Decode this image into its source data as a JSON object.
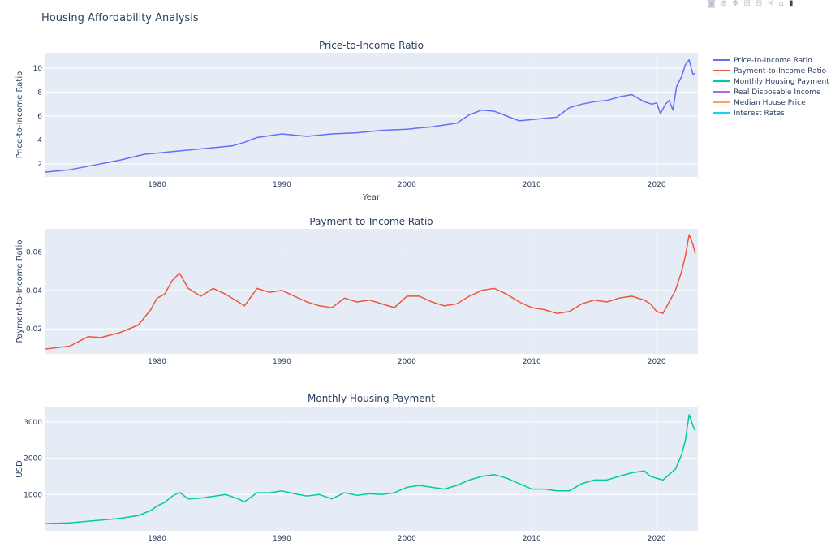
{
  "page": {
    "title": "Housing Affordability Analysis"
  },
  "modebar": {
    "icons": [
      "camera-icon",
      "zoom-icon",
      "pan-icon",
      "zoom-in-icon",
      "zoom-out-icon",
      "autoscale-icon",
      "reset-axes-icon",
      "plotly-logo-icon"
    ],
    "glyphs": [
      "◙",
      "⊕",
      "✥",
      "⊞",
      "⊟",
      "✕",
      "⌂",
      "▮"
    ]
  },
  "legend": {
    "placement": "top-right",
    "entries": [
      {
        "name": "Price-to-Income Ratio",
        "color": "#636efa"
      },
      {
        "name": "Payment-to-Income Ratio",
        "color": "#ef553b"
      },
      {
        "name": "Monthly Housing Payment",
        "color": "#00cc96"
      },
      {
        "name": "Real Disposable Income",
        "color": "#ab63fa"
      },
      {
        "name": "Median House Price",
        "color": "#ffa15a"
      },
      {
        "name": "Interest Rates",
        "color": "#19d3f3"
      }
    ]
  },
  "chart_data": [
    {
      "type": "line",
      "title": "Price-to-Income Ratio",
      "xlabel": "Year",
      "ylabel": "Price-to-Income Ratio",
      "xlim": [
        1971,
        2023.3
      ],
      "ylim": [
        0.9,
        11.3
      ],
      "xticks": [
        1980,
        1990,
        2000,
        2010,
        2020
      ],
      "yticks": [
        2,
        4,
        6,
        8,
        10
      ],
      "tick_labels_y": [
        "2",
        "4",
        "6",
        "8",
        "10"
      ],
      "grid": true,
      "series": [
        {
          "name": "Price-to-Income Ratio",
          "color": "#636efa",
          "x": [
            1971,
            1973,
            1975,
            1977,
            1979,
            1980,
            1982,
            1984,
            1986,
            1987,
            1988,
            1990,
            1992,
            1994,
            1996,
            1998,
            2000,
            2002,
            2004,
            2005,
            2006,
            2007,
            2008,
            2009,
            2010,
            2011,
            2012,
            2013,
            2014,
            2015,
            2016,
            2017,
            2018,
            2019,
            2019.6,
            2020,
            2020.3,
            2020.7,
            2021,
            2021.3,
            2021.6,
            2022,
            2022.3,
            2022.6,
            2022.9,
            2023.1
          ],
          "y": [
            1.3,
            1.5,
            1.9,
            2.3,
            2.8,
            2.9,
            3.1,
            3.3,
            3.5,
            3.8,
            4.2,
            4.5,
            4.3,
            4.5,
            4.6,
            4.8,
            4.9,
            5.1,
            5.4,
            6.1,
            6.5,
            6.4,
            6.0,
            5.6,
            5.7,
            5.8,
            5.9,
            6.7,
            7.0,
            7.2,
            7.3,
            7.6,
            7.8,
            7.2,
            7.0,
            7.1,
            6.2,
            7.0,
            7.3,
            6.5,
            8.5,
            9.3,
            10.3,
            10.7,
            9.5,
            9.6
          ]
        }
      ]
    },
    {
      "type": "line",
      "title": "Payment-to-Income Ratio",
      "xlabel": "",
      "ylabel": "Payment-to-Income Ratio",
      "xlim": [
        1971,
        2023.3
      ],
      "ylim": [
        0.007,
        0.072
      ],
      "xticks": [
        1980,
        1990,
        2000,
        2010,
        2020
      ],
      "yticks": [
        0.02,
        0.04,
        0.06
      ],
      "tick_labels_y": [
        "0.02",
        "0.04",
        "0.06"
      ],
      "grid": true,
      "series": [
        {
          "name": "Payment-to-Income Ratio",
          "color": "#ef553b",
          "x": [
            1971,
            1973,
            1974.5,
            1975.5,
            1977,
            1978.5,
            1979.5,
            1980,
            1980.6,
            1981.2,
            1981.8,
            1982.5,
            1983.5,
            1984.5,
            1985.5,
            1986.5,
            1987,
            1988,
            1989,
            1990,
            1991,
            1992,
            1993,
            1994,
            1995,
            1996,
            1997,
            1998,
            1999,
            2000,
            2001,
            2002,
            2003,
            2004,
            2005,
            2006,
            2007,
            2008,
            2009,
            2010,
            2011,
            2012,
            2013,
            2014,
            2015,
            2016,
            2017,
            2018,
            2019,
            2019.5,
            2020,
            2020.5,
            2021,
            2021.5,
            2022,
            2022.3,
            2022.6,
            2022.9,
            2023.1
          ],
          "y": [
            0.0095,
            0.011,
            0.016,
            0.0155,
            0.018,
            0.022,
            0.03,
            0.036,
            0.038,
            0.045,
            0.049,
            0.041,
            0.037,
            0.041,
            0.038,
            0.034,
            0.032,
            0.041,
            0.039,
            0.04,
            0.037,
            0.034,
            0.032,
            0.031,
            0.036,
            0.034,
            0.035,
            0.033,
            0.031,
            0.037,
            0.037,
            0.034,
            0.032,
            0.033,
            0.037,
            0.04,
            0.041,
            0.038,
            0.034,
            0.031,
            0.03,
            0.028,
            0.029,
            0.033,
            0.035,
            0.034,
            0.036,
            0.037,
            0.035,
            0.033,
            0.029,
            0.028,
            0.034,
            0.04,
            0.05,
            0.058,
            0.069,
            0.064,
            0.059
          ]
        }
      ]
    },
    {
      "type": "line",
      "title": "Monthly Housing Payment",
      "xlabel": "",
      "ylabel": "USD",
      "xlim": [
        1971,
        2023.3
      ],
      "ylim": [
        0,
        3400
      ],
      "xticks": [
        1980,
        1990,
        2000,
        2010,
        2020
      ],
      "yticks": [
        1000,
        2000,
        3000
      ],
      "tick_labels_y": [
        "1000",
        "2000",
        "3000"
      ],
      "grid": true,
      "series": [
        {
          "name": "Monthly Housing Payment",
          "color": "#00cc96",
          "x": [
            1971,
            1973,
            1975,
            1977,
            1978.5,
            1979.5,
            1980,
            1980.6,
            1981.2,
            1981.8,
            1982.5,
            1983.5,
            1984.5,
            1985.5,
            1986.5,
            1987,
            1988,
            1989,
            1990,
            1991,
            1992,
            1993,
            1994,
            1995,
            1996,
            1997,
            1998,
            1999,
            2000,
            2001,
            2002,
            2003,
            2004,
            2005,
            2006,
            2007,
            2008,
            2009,
            2010,
            2011,
            2012,
            2013,
            2014,
            2015,
            2016,
            2017,
            2018,
            2019,
            2019.5,
            2020,
            2020.5,
            2021,
            2021.5,
            2022,
            2022.3,
            2022.6,
            2022.9,
            2023.1
          ],
          "y": [
            200,
            220,
            280,
            340,
            420,
            560,
            680,
            780,
            950,
            1060,
            880,
            900,
            950,
            1000,
            880,
            800,
            1050,
            1050,
            1100,
            1020,
            960,
            1000,
            880,
            1050,
            980,
            1020,
            1000,
            1050,
            1200,
            1250,
            1200,
            1150,
            1250,
            1400,
            1500,
            1550,
            1450,
            1300,
            1150,
            1150,
            1100,
            1100,
            1300,
            1400,
            1400,
            1500,
            1600,
            1650,
            1500,
            1450,
            1400,
            1550,
            1700,
            2100,
            2500,
            3200,
            2900,
            2750
          ]
        }
      ]
    }
  ]
}
